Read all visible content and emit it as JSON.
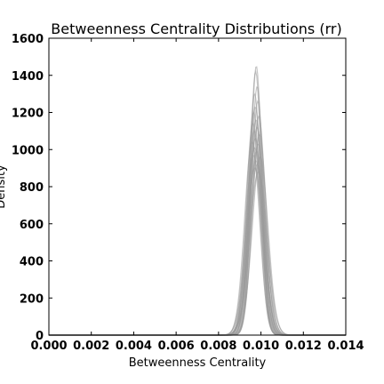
{
  "chart_data": {
    "type": "line",
    "title": "Betweenness Centrality Distributions (rr)",
    "xlabel": "Betweenness Centrality",
    "ylabel": "Density",
    "xlim": [
      0.0,
      0.014
    ],
    "ylim": [
      0,
      1600
    ],
    "xticks": [
      0.0,
      0.002,
      0.004,
      0.006,
      0.008,
      0.01,
      0.012,
      0.014
    ],
    "xtick_labels": [
      "0.000",
      "0.002",
      "0.004",
      "0.006",
      "0.008",
      "0.010",
      "0.012",
      "0.014"
    ],
    "yticks": [
      0,
      200,
      400,
      600,
      800,
      1000,
      1200,
      1400,
      1600
    ],
    "ytick_labels": [
      "0",
      "200",
      "400",
      "600",
      "800",
      "1000",
      "1200",
      "1400",
      "1600"
    ],
    "grid": false,
    "legend": "none",
    "line_color": "#999999",
    "series": [
      {
        "center": 0.00978,
        "peak": 1450,
        "width": 0.00026
      },
      {
        "center": 0.00975,
        "peak": 1420,
        "width": 0.00027
      },
      {
        "center": 0.00982,
        "peak": 1340,
        "width": 0.00028
      },
      {
        "center": 0.0097,
        "peak": 1300,
        "width": 0.00029
      },
      {
        "center": 0.00985,
        "peak": 1260,
        "width": 0.0003
      },
      {
        "center": 0.00973,
        "peak": 1230,
        "width": 0.0003
      },
      {
        "center": 0.00966,
        "peak": 1200,
        "width": 0.00031
      },
      {
        "center": 0.0099,
        "peak": 1180,
        "width": 0.00031
      },
      {
        "center": 0.00977,
        "peak": 1160,
        "width": 0.00032
      },
      {
        "center": 0.00962,
        "peak": 1140,
        "width": 0.00032
      },
      {
        "center": 0.00981,
        "peak": 1120,
        "width": 0.00033
      },
      {
        "center": 0.00968,
        "peak": 1100,
        "width": 0.00033
      },
      {
        "center": 0.00993,
        "peak": 1080,
        "width": 0.00034
      },
      {
        "center": 0.00974,
        "peak": 1060,
        "width": 0.00034
      },
      {
        "center": 0.00958,
        "peak": 1040,
        "width": 0.00035
      },
      {
        "center": 0.00987,
        "peak": 1030,
        "width": 0.00035
      },
      {
        "center": 0.0097,
        "peak": 1010,
        "width": 0.00036
      },
      {
        "center": 0.00979,
        "peak": 990,
        "width": 0.00036
      },
      {
        "center": 0.00964,
        "peak": 970,
        "width": 0.00037
      },
      {
        "center": 0.00996,
        "peak": 960,
        "width": 0.00037
      },
      {
        "center": 0.00976,
        "peak": 940,
        "width": 0.00038
      },
      {
        "center": 0.00983,
        "peak": 920,
        "width": 0.00039
      },
      {
        "center": 0.00971,
        "peak": 900,
        "width": 0.0004
      },
      {
        "center": 0.00988,
        "peak": 880,
        "width": 0.00041
      }
    ]
  }
}
